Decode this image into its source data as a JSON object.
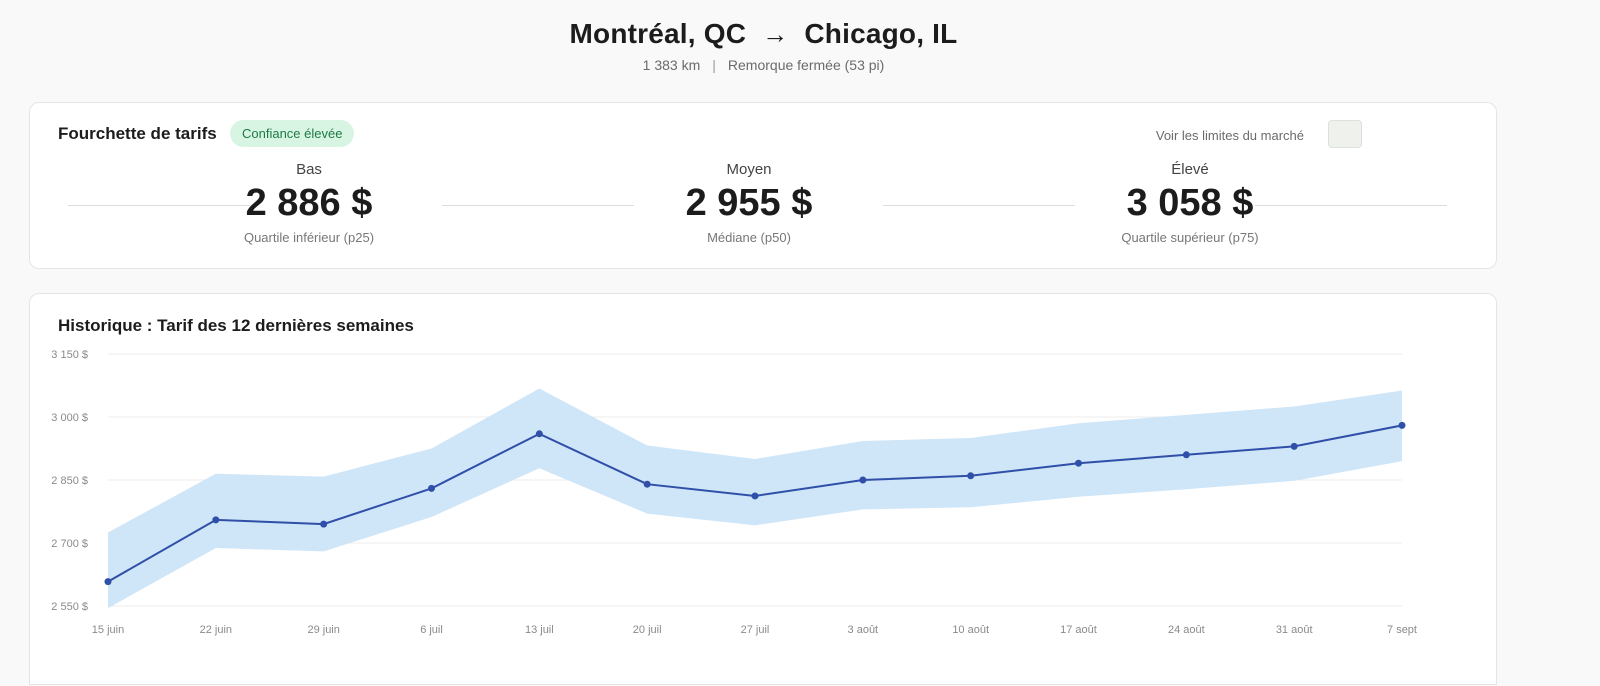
{
  "header": {
    "origin": "Montréal, QC",
    "destination": "Chicago, IL",
    "arrow_icon": "arrow-right-icon",
    "distance": "1 383 km",
    "separator": "|",
    "equipment": "Remorque fermée (53 pi)"
  },
  "range_card": {
    "title": "Fourchette de tarifs",
    "badge": "Confiance élevée",
    "market_toggle_label": "Voir les limites du marché",
    "stats": [
      {
        "label": "Bas",
        "value": "2 886 $",
        "note": "Quartile inférieur (p25)"
      },
      {
        "label": "Moyen",
        "value": "2 955 $",
        "note": "Médiane (p50)"
      },
      {
        "label": "Élevé",
        "value": "3 058 $",
        "note": "Quartile supérieur (p75)"
      }
    ]
  },
  "history_card": {
    "title": "Historique : Tarif des 12 dernières semaines"
  },
  "colors": {
    "line": "#2f4fa8",
    "band": "#cfe5f8",
    "grid": "#ececec",
    "badge_bg": "#d8f5e3",
    "badge_text": "#1e7a45"
  },
  "chart_data": {
    "type": "line",
    "x": [
      "15 juin",
      "22 juin",
      "29 juin",
      "6 juil",
      "13 juil",
      "20 juil",
      "27 juil",
      "3 août",
      "10 août",
      "17 août",
      "24 août",
      "31 août",
      "7 sept"
    ],
    "series": [
      {
        "values": [
          2608,
          2755,
          2745,
          2830,
          2960,
          2840,
          2812,
          2850,
          2860,
          2890,
          2910,
          2930,
          2980
        ]
      }
    ],
    "band": {
      "upper": [
        2725,
        2865,
        2858,
        2925,
        3068,
        2932,
        2900,
        2943,
        2950,
        2985,
        3005,
        3025,
        3063
      ],
      "lower": [
        2545,
        2688,
        2680,
        2762,
        2878,
        2770,
        2742,
        2780,
        2785,
        2810,
        2828,
        2848,
        2895
      ]
    },
    "y_ticks": [
      "3 150 $",
      "3 000 $",
      "2 850 $",
      "2 700 $",
      "2 550 $"
    ],
    "y_tick_values": [
      3150,
      3000,
      2850,
      2700,
      2550
    ],
    "ylim": [
      2550,
      3150
    ],
    "grid": true,
    "title": "Historique : Tarif des 12 dernières semaines"
  }
}
